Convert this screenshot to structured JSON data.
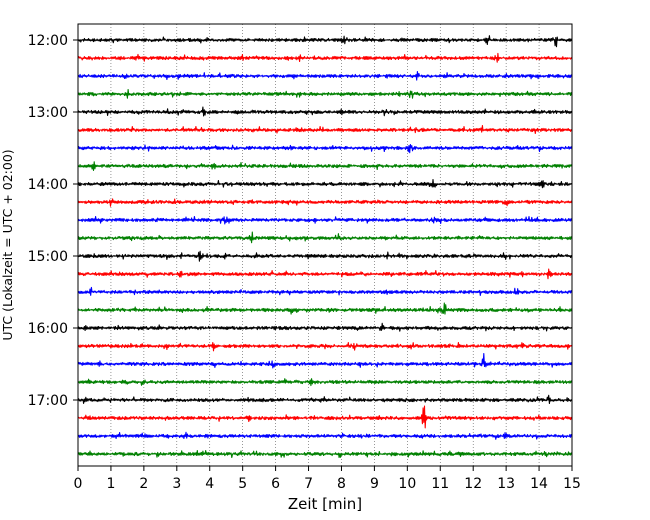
{
  "chart_data": {
    "type": "line",
    "title": "",
    "xlabel": "Zeit  [min]",
    "ylabel": "UTC (Lokalzeit = UTC + 02:00)",
    "xlim": [
      0,
      15
    ],
    "x_ticks": [
      "0",
      "1",
      "2",
      "3",
      "4",
      "5",
      "6",
      "7",
      "8",
      "9",
      "10",
      "11",
      "12",
      "13",
      "14",
      "15"
    ],
    "y_tick_labels": [
      "12:00",
      "13:00",
      "14:00",
      "15:00",
      "16:00",
      "17:00"
    ],
    "grid": "vertical dotted",
    "row_colors": [
      "#000000",
      "#ff0000",
      "#0000ff",
      "#008000"
    ],
    "series": [
      {
        "start": "12:00",
        "color": "#000000",
        "spikes": [
          {
            "x": 14.5,
            "amp": 0.45
          },
          {
            "x": 12.4,
            "amp": 0.35
          },
          {
            "x": 8.1,
            "amp": 0.3
          }
        ]
      },
      {
        "start": "12:15",
        "color": "#ff0000",
        "spikes": [
          {
            "x": 12.7,
            "amp": 0.4
          },
          {
            "x": 1.8,
            "amp": 0.25
          }
        ]
      },
      {
        "start": "12:30",
        "color": "#0000ff",
        "spikes": [
          {
            "x": 1.4,
            "amp": 0.25
          },
          {
            "x": 10.3,
            "amp": 0.25
          }
        ]
      },
      {
        "start": "12:45",
        "color": "#008000",
        "spikes": [
          {
            "x": 10.1,
            "amp": 0.35
          },
          {
            "x": 1.5,
            "amp": 0.25
          }
        ]
      },
      {
        "start": "13:00",
        "color": "#000000",
        "spikes": [
          {
            "x": 9.3,
            "amp": 0.4
          },
          {
            "x": 3.8,
            "amp": 0.3
          }
        ]
      },
      {
        "start": "13:15",
        "color": "#ff0000",
        "spikes": [
          {
            "x": 14.9,
            "amp": 0.35
          },
          {
            "x": 12.2,
            "amp": 0.25
          }
        ]
      },
      {
        "start": "13:30",
        "color": "#0000ff",
        "spikes": [
          {
            "x": 10.1,
            "amp": 0.45
          },
          {
            "x": 6.5,
            "amp": 0.2
          }
        ]
      },
      {
        "start": "13:45",
        "color": "#008000",
        "spikes": [
          {
            "x": 0.5,
            "amp": 0.3
          },
          {
            "x": 4.1,
            "amp": 0.2
          }
        ]
      },
      {
        "start": "14:00",
        "color": "#000000",
        "spikes": [
          {
            "x": 10.8,
            "amp": 0.25
          },
          {
            "x": 14.1,
            "amp": 0.2
          }
        ]
      },
      {
        "start": "14:15",
        "color": "#ff0000",
        "spikes": [
          {
            "x": 13.0,
            "amp": 0.25
          },
          {
            "x": 1.0,
            "amp": 0.25
          }
        ]
      },
      {
        "start": "14:30",
        "color": "#0000ff",
        "spikes": [
          {
            "x": 4.5,
            "amp": 0.4
          },
          {
            "x": 10.8,
            "amp": 0.2
          }
        ]
      },
      {
        "start": "14:45",
        "color": "#008000",
        "spikes": [
          {
            "x": 5.3,
            "amp": 0.35
          },
          {
            "x": 7.9,
            "amp": 0.25
          }
        ]
      },
      {
        "start": "15:00",
        "color": "#000000",
        "spikes": [
          {
            "x": 3.7,
            "amp": 0.25
          },
          {
            "x": 9.4,
            "amp": 0.2
          }
        ]
      },
      {
        "start": "15:15",
        "color": "#ff0000",
        "spikes": [
          {
            "x": 14.3,
            "amp": 0.35
          },
          {
            "x": 3.1,
            "amp": 0.25
          }
        ]
      },
      {
        "start": "15:30",
        "color": "#0000ff",
        "spikes": [
          {
            "x": 0.4,
            "amp": 0.25
          },
          {
            "x": 13.3,
            "amp": 0.25
          }
        ]
      },
      {
        "start": "15:45",
        "color": "#008000",
        "spikes": [
          {
            "x": 11.1,
            "amp": 0.45
          },
          {
            "x": 6.5,
            "amp": 0.2
          }
        ]
      },
      {
        "start": "16:00",
        "color": "#000000",
        "spikes": [
          {
            "x": 9.2,
            "amp": 0.3
          },
          {
            "x": 0.2,
            "amp": 0.25
          }
        ]
      },
      {
        "start": "16:15",
        "color": "#ff0000",
        "spikes": [
          {
            "x": 4.1,
            "amp": 0.25
          },
          {
            "x": 8.4,
            "amp": 0.25
          }
        ]
      },
      {
        "start": "16:30",
        "color": "#0000ff",
        "spikes": [
          {
            "x": 12.3,
            "amp": 0.65
          },
          {
            "x": 5.9,
            "amp": 0.3
          }
        ]
      },
      {
        "start": "16:45",
        "color": "#008000",
        "spikes": [
          {
            "x": 1.4,
            "amp": 0.25
          },
          {
            "x": 7.1,
            "amp": 0.25
          }
        ]
      },
      {
        "start": "17:00",
        "color": "#000000",
        "spikes": [
          {
            "x": 14.3,
            "amp": 0.25
          },
          {
            "x": 0.3,
            "amp": 0.2
          }
        ]
      },
      {
        "start": "17:15",
        "color": "#ff0000",
        "spikes": [
          {
            "x": 10.5,
            "amp": 0.8
          },
          {
            "x": 5.2,
            "amp": 0.3
          }
        ]
      },
      {
        "start": "17:30",
        "color": "#0000ff",
        "spikes": [
          {
            "x": 3.3,
            "amp": 0.35
          },
          {
            "x": 13.0,
            "amp": 0.3
          }
        ]
      },
      {
        "start": "17:45",
        "color": "#008000",
        "spikes": [
          {
            "x": 2.4,
            "amp": 0.15
          },
          {
            "x": 9.5,
            "amp": 0.15
          }
        ]
      }
    ]
  }
}
